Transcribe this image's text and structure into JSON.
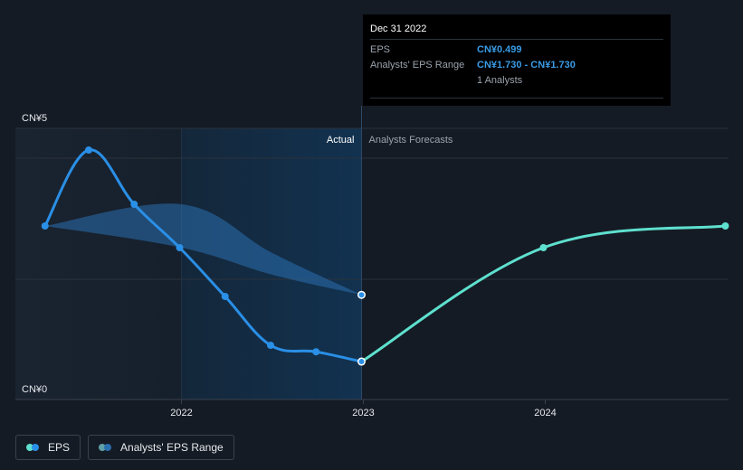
{
  "chart_data": {
    "type": "line",
    "y_axis": {
      "labels": [
        "CN¥5",
        "CN¥0"
      ],
      "ylim": [
        0,
        5
      ]
    },
    "x_axis": {
      "ticks": [
        "2022",
        "2023",
        "2024"
      ],
      "tick_values": [
        2022,
        2023,
        2024
      ]
    },
    "region_labels": {
      "actual": "Actual",
      "forecast": "Analysts Forecasts"
    },
    "series": [
      {
        "name": "EPS",
        "color": "#2a8fe6",
        "points": [
          {
            "x": 2021.25,
            "y": 3.0
          },
          {
            "x": 2021.49,
            "y": 4.4
          },
          {
            "x": 2021.74,
            "y": 3.4
          },
          {
            "x": 2021.99,
            "y": 2.6
          },
          {
            "x": 2022.24,
            "y": 1.7
          },
          {
            "x": 2022.49,
            "y": 0.8
          },
          {
            "x": 2022.74,
            "y": 0.68
          },
          {
            "x": 2022.99,
            "y": 0.499
          }
        ]
      },
      {
        "name": "EPS Forecast",
        "color": "#5ee0cf",
        "points": [
          {
            "x": 2022.99,
            "y": 0.499
          },
          {
            "x": 2023.99,
            "y": 2.6
          },
          {
            "x": 2024.99,
            "y": 3.0
          }
        ]
      }
    ],
    "range": {
      "name": "Analysts' EPS Range",
      "color": "#2a6fb0",
      "upper": [
        {
          "x": 2021.25,
          "y": 3.0
        },
        {
          "x": 2022.0,
          "y": 3.4
        },
        {
          "x": 2022.5,
          "y": 2.5
        },
        {
          "x": 2022.99,
          "y": 1.73
        }
      ],
      "lower": [
        {
          "x": 2021.25,
          "y": 3.0
        },
        {
          "x": 2022.0,
          "y": 2.6
        },
        {
          "x": 2022.5,
          "y": 2.1
        },
        {
          "x": 2022.99,
          "y": 1.73
        }
      ]
    },
    "highlight_x": 2022.99,
    "legend": [
      "EPS",
      "Analysts' EPS Range"
    ]
  },
  "tooltip": {
    "date": "Dec 31 2022",
    "rows": [
      {
        "label": "EPS",
        "value": "CN¥0.499"
      },
      {
        "label": "Analysts' EPS Range",
        "value": "CN¥1.730 - CN¥1.730"
      },
      {
        "label": "",
        "value": "1 Analysts"
      }
    ]
  },
  "legend": {
    "eps_label": "EPS",
    "range_label": "Analysts' EPS Range",
    "eps_colors": [
      "#5ee0cf",
      "#2a8fe6"
    ],
    "range_colors": [
      "#5fa0a8",
      "#2a6fb0"
    ]
  }
}
